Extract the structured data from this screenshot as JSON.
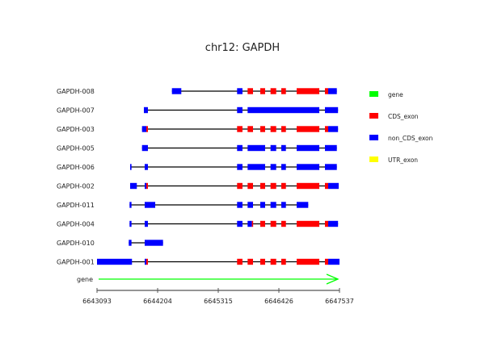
{
  "chart_data": {
    "type": "gene-structure",
    "title": "chr12: GAPDH",
    "xlim": [
      6643093,
      6647537
    ],
    "x_ticks": [
      6643093,
      6644204,
      6645315,
      6646426,
      6647537
    ],
    "colors": {
      "gene": "#00ff00",
      "cds": "#ff0000",
      "nc": "#0000ff",
      "utr": "#ffff00"
    },
    "legend": [
      {
        "label": "gene",
        "color": "#00ff00"
      },
      {
        "label": "CDS_exon",
        "color": "#ff0000"
      },
      {
        "label": "non_CDS_exon",
        "color": "#0000ff"
      },
      {
        "label": "UTR_exon",
        "color": "#ffff00"
      }
    ],
    "gene": {
      "label": "gene",
      "start": 6643093,
      "end": 6647537,
      "strand": "+"
    },
    "transcripts": [
      {
        "name": "GAPDH-008",
        "exons": [
          [
            "nc",
            6644466,
            6644638
          ],
          [
            "nc",
            6645660,
            6645759
          ],
          [
            "cds",
            6645853,
            6645952
          ],
          [
            "cds",
            6646085,
            6646174
          ],
          [
            "cds",
            6646273,
            6646377
          ],
          [
            "cds",
            6646470,
            6646555
          ],
          [
            "cds",
            6646752,
            6647167
          ],
          [
            "cds",
            6647270,
            6647330
          ],
          [
            "nc",
            6647330,
            6647488
          ]
        ]
      },
      {
        "name": "GAPDH-007",
        "exons": [
          [
            "nc",
            6643952,
            6644026
          ],
          [
            "nc",
            6645660,
            6645759
          ],
          [
            "nc",
            6645853,
            6647167
          ],
          [
            "nc",
            6647270,
            6647510
          ]
        ]
      },
      {
        "name": "GAPDH-003",
        "exons": [
          [
            "nc",
            6643918,
            6643997
          ],
          [
            "cds",
            6643997,
            6644026
          ],
          [
            "cds",
            6645660,
            6645759
          ],
          [
            "cds",
            6645853,
            6645952
          ],
          [
            "cds",
            6646085,
            6646174
          ],
          [
            "cds",
            6646273,
            6646377
          ],
          [
            "cds",
            6646470,
            6646555
          ],
          [
            "cds",
            6646752,
            6647167
          ],
          [
            "cds",
            6647270,
            6647330
          ],
          [
            "nc",
            6647330,
            6647510
          ]
        ]
      },
      {
        "name": "GAPDH-005",
        "exons": [
          [
            "nc",
            6643918,
            6644026
          ],
          [
            "nc",
            6645660,
            6645759
          ],
          [
            "nc",
            6645853,
            6646174
          ],
          [
            "nc",
            6646273,
            6646377
          ],
          [
            "nc",
            6646470,
            6646555
          ],
          [
            "nc",
            6646752,
            6647167
          ],
          [
            "nc",
            6647270,
            6647488
          ]
        ]
      },
      {
        "name": "GAPDH-006",
        "exons": [
          [
            "nc",
            6643700,
            6643725
          ],
          [
            "nc",
            6643967,
            6644026
          ],
          [
            "nc",
            6645660,
            6645759
          ],
          [
            "nc",
            6645853,
            6646174
          ],
          [
            "nc",
            6646273,
            6646377
          ],
          [
            "nc",
            6646470,
            6646555
          ],
          [
            "nc",
            6646752,
            6647167
          ],
          [
            "nc",
            6647270,
            6647488
          ]
        ]
      },
      {
        "name": "GAPDH-002",
        "exons": [
          [
            "nc",
            6643700,
            6643823
          ],
          [
            "nc",
            6643967,
            6643997
          ],
          [
            "cds",
            6643997,
            6644026
          ],
          [
            "cds",
            6645660,
            6645759
          ],
          [
            "cds",
            6645853,
            6645952
          ],
          [
            "cds",
            6646085,
            6646174
          ],
          [
            "cds",
            6646273,
            6646377
          ],
          [
            "cds",
            6646470,
            6646555
          ],
          [
            "cds",
            6646752,
            6647167
          ],
          [
            "cds",
            6647270,
            6647330
          ],
          [
            "nc",
            6647330,
            6647522
          ]
        ]
      },
      {
        "name": "GAPDH-011",
        "exons": [
          [
            "nc",
            6643690,
            6643725
          ],
          [
            "nc",
            6643967,
            6644160
          ],
          [
            "nc",
            6645660,
            6645759
          ],
          [
            "nc",
            6645853,
            6645952
          ],
          [
            "nc",
            6646085,
            6646174
          ],
          [
            "nc",
            6646273,
            6646377
          ],
          [
            "nc",
            6646470,
            6646555
          ],
          [
            "nc",
            6646752,
            6646964
          ]
        ]
      },
      {
        "name": "GAPDH-004",
        "exons": [
          [
            "nc",
            6643690,
            6643725
          ],
          [
            "nc",
            6643967,
            6644026
          ],
          [
            "nc",
            6645660,
            6645759
          ],
          [
            "nc",
            6645853,
            6645932
          ],
          [
            "cds",
            6645932,
            6645952
          ],
          [
            "cds",
            6646085,
            6646174
          ],
          [
            "cds",
            6646273,
            6646377
          ],
          [
            "cds",
            6646470,
            6646555
          ],
          [
            "cds",
            6646752,
            6647167
          ],
          [
            "cds",
            6647270,
            6647330
          ],
          [
            "nc",
            6647330,
            6647510
          ]
        ]
      },
      {
        "name": "GAPDH-010",
        "exons": [
          [
            "nc",
            6643675,
            6643725
          ],
          [
            "nc",
            6643967,
            6644303
          ]
        ]
      },
      {
        "name": "GAPDH-001",
        "exons": [
          [
            "nc",
            6643093,
            6643734
          ],
          [
            "nc",
            6643967,
            6643997
          ],
          [
            "cds",
            6643997,
            6644026
          ],
          [
            "cds",
            6645660,
            6645759
          ],
          [
            "cds",
            6645853,
            6645952
          ],
          [
            "cds",
            6646085,
            6646174
          ],
          [
            "cds",
            6646273,
            6646377
          ],
          [
            "cds",
            6646470,
            6646555
          ],
          [
            "cds",
            6646752,
            6647167
          ],
          [
            "cds",
            6647270,
            6647330
          ],
          [
            "nc",
            6647330,
            6647537
          ]
        ]
      }
    ]
  }
}
